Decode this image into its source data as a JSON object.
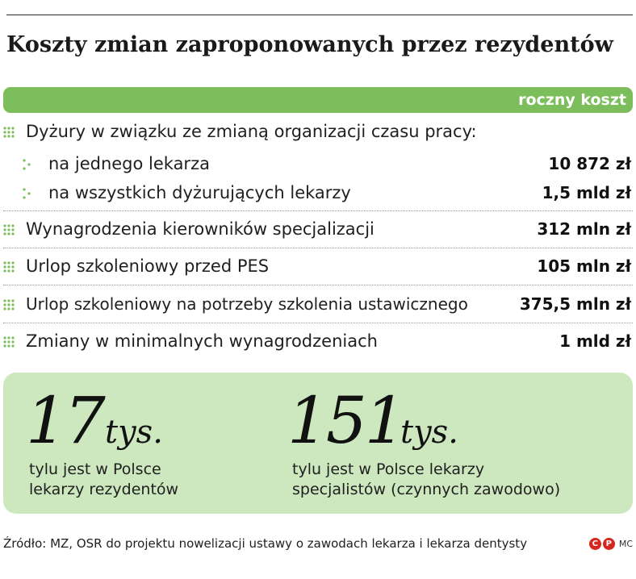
{
  "title": "Koszty zmian zaproponowanych przez rezydentów",
  "header_label": "roczny koszt",
  "rows": [
    {
      "label": "Dyżury w związku ze zmianą organizacji czasu pracy:",
      "value": ""
    },
    {
      "label": "na jednego lekarza",
      "value": "10 872 zł"
    },
    {
      "label": "na wszystkich dyżurujących lekarzy",
      "value": "1,5 mld zł"
    },
    {
      "label": "Wynagrodzenia kierowników specjalizacji",
      "value": "312 mln zł"
    },
    {
      "label": "Urlop szkoleniowy przed PES",
      "value": "105 mln zł"
    },
    {
      "label": "Urlop szkoleniowy na potrzeby szkolenia ustawicznego",
      "value": "375,5 mln zł"
    },
    {
      "label": "Zmiany w minimalnych wynagrodzeniach",
      "value": "1 mld zł"
    }
  ],
  "stats": [
    {
      "number": "17",
      "unit": "tys.",
      "caption_line1": "tylu jest w Polsce",
      "caption_line2": "lekarzy rezydentów"
    },
    {
      "number": "151",
      "unit": "tys.",
      "caption_line1": "tylu jest w Polsce lekarzy",
      "caption_line2": "specjalistów (czynnych zawodowo)"
    }
  ],
  "source": "Źródło: MZ, OSR do projektu nowelizacji ustawy o zawodach lekarza i lekarza dentysty",
  "logos": {
    "c": "C",
    "p": "P",
    "mc": "MC"
  },
  "colors": {
    "accent_green": "#7cbe5b",
    "light_green": "#cde7bf"
  }
}
